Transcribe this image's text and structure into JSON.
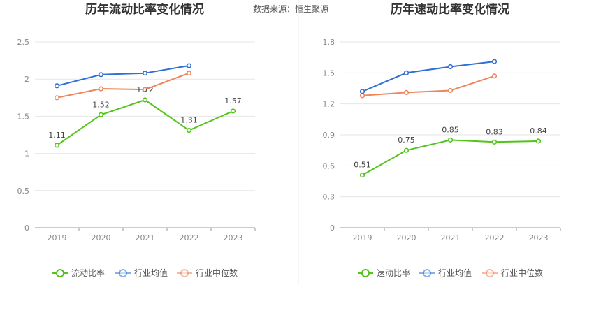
{
  "source_label": "数据来源：恒生聚源",
  "chart_data": [
    {
      "type": "line",
      "title": "历年流动比率变化情况",
      "categories": [
        "2019",
        "2020",
        "2021",
        "2022",
        "2023"
      ],
      "ylim": [
        0,
        2.5
      ],
      "yticks": [
        "0",
        "0.5",
        "1",
        "1.5",
        "2",
        "2.5"
      ],
      "ytick_values": [
        0,
        0.5,
        1,
        1.5,
        2,
        2.5
      ],
      "grid": true,
      "legend_position": "bottom",
      "series": [
        {
          "name": "流动比率",
          "values": [
            1.11,
            1.52,
            1.72,
            1.31,
            1.57
          ],
          "labels": [
            "1.11",
            "1.52",
            "1.72",
            "1.31",
            "1.57"
          ],
          "color": "#52c41a",
          "show_labels": true
        },
        {
          "name": "行业均值",
          "values": [
            1.91,
            2.06,
            2.08,
            2.18,
            null
          ],
          "color": "#2f6fd6",
          "show_labels": false
        },
        {
          "name": "行业中位数",
          "values": [
            1.75,
            1.87,
            1.86,
            2.08,
            null
          ],
          "color": "#f0845a",
          "show_labels": false
        }
      ]
    },
    {
      "type": "line",
      "title": "历年速动比率变化情况",
      "categories": [
        "2019",
        "2020",
        "2021",
        "2022",
        "2023"
      ],
      "ylim": [
        0,
        1.8
      ],
      "yticks": [
        "0",
        "0.3",
        "0.6",
        "0.9",
        "1.2",
        "1.5",
        "1.8"
      ],
      "ytick_values": [
        0,
        0.3,
        0.6,
        0.9,
        1.2,
        1.5,
        1.8
      ],
      "grid": true,
      "legend_position": "bottom",
      "series": [
        {
          "name": "速动比率",
          "values": [
            0.51,
            0.75,
            0.85,
            0.83,
            0.84
          ],
          "labels": [
            "0.51",
            "0.75",
            "0.85",
            "0.83",
            "0.84"
          ],
          "color": "#52c41a",
          "show_labels": true
        },
        {
          "name": "行业均值",
          "values": [
            1.32,
            1.5,
            1.56,
            1.61,
            null
          ],
          "color": "#2f6fd6",
          "show_labels": false
        },
        {
          "name": "行业中位数",
          "values": [
            1.28,
            1.31,
            1.33,
            1.47,
            null
          ],
          "color": "#f0845a",
          "show_labels": false
        }
      ]
    }
  ]
}
